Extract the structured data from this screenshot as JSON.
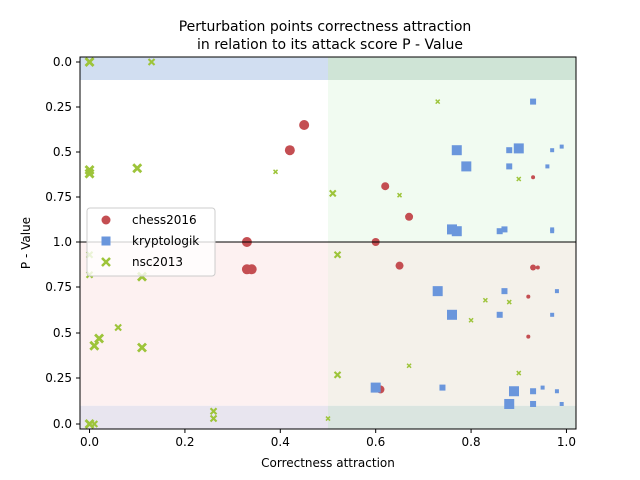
{
  "chart_data": {
    "type": "scatter",
    "title": [
      "Perturbation points correctness attraction",
      "in relation to its attack score P - Value"
    ],
    "xlabel": "Correctness attraction",
    "ylabel": "P - Value",
    "xlim": [
      -0.02,
      1.02
    ],
    "x_ticks": [
      0.0,
      0.2,
      0.4,
      0.6,
      0.8,
      1.0
    ],
    "x_tick_labels": [
      "0.0",
      "0.2",
      "0.4",
      "0.6",
      "0.8",
      "1.0"
    ],
    "y_panels": "Upper half and lower half each span P-Value 0 to 1, meeting at the centre line labelled 1.0",
    "y_tick_labels": [
      "0.0",
      "0.25",
      "0.5",
      "0.75",
      "1.0",
      "0.75",
      "0.5",
      "0.25",
      "0.0"
    ],
    "grid": false,
    "legend_position": "center-left",
    "regions": [
      {
        "panel": "top",
        "x": [
          -0.02,
          0.5
        ],
        "p": [
          0.0,
          0.1
        ],
        "color": "#c9d8ef"
      },
      {
        "panel": "top",
        "x": [
          0.5,
          1.02
        ],
        "p": [
          0.0,
          0.1
        ],
        "color": "#c7dfcf"
      },
      {
        "panel": "top",
        "x": [
          0.5,
          1.02
        ],
        "p": [
          0.1,
          1.0
        ],
        "color": "#effaef"
      },
      {
        "panel": "bottom",
        "x": [
          -0.02,
          0.5
        ],
        "p": [
          0.1,
          1.0
        ],
        "color": "#fdeeee"
      },
      {
        "panel": "bottom",
        "x": [
          0.5,
          1.02
        ],
        "p": [
          0.1,
          1.0
        ],
        "color": "#f2efe6"
      },
      {
        "panel": "bottom",
        "x": [
          -0.02,
          0.5
        ],
        "p": [
          0.0,
          0.1
        ],
        "color": "#e4e0ec"
      },
      {
        "panel": "bottom",
        "x": [
          0.5,
          1.02
        ],
        "p": [
          0.0,
          0.1
        ],
        "color": "#d3e0da"
      }
    ],
    "series": [
      {
        "name": "chess2016",
        "marker": "circle",
        "color": "#c44e52",
        "points": [
          {
            "x": 0.45,
            "p": 0.35,
            "panel": "top",
            "size": 5
          },
          {
            "x": 0.42,
            "p": 0.49,
            "panel": "top",
            "size": 5
          },
          {
            "x": 0.62,
            "p": 0.69,
            "panel": "top",
            "size": 4
          },
          {
            "x": 0.67,
            "p": 0.86,
            "panel": "top",
            "size": 4
          },
          {
            "x": 0.93,
            "p": 0.64,
            "panel": "top",
            "size": 2
          },
          {
            "x": 0.33,
            "p": 1.0,
            "panel": "bottom",
            "size": 5
          },
          {
            "x": 0.6,
            "p": 1.0,
            "panel": "bottom",
            "size": 4
          },
          {
            "x": 0.33,
            "p": 0.85,
            "panel": "bottom",
            "size": 5
          },
          {
            "x": 0.34,
            "p": 0.85,
            "panel": "bottom",
            "size": 5
          },
          {
            "x": 0.65,
            "p": 0.87,
            "panel": "bottom",
            "size": 4
          },
          {
            "x": 0.93,
            "p": 0.86,
            "panel": "bottom",
            "size": 3
          },
          {
            "x": 0.94,
            "p": 0.86,
            "panel": "bottom",
            "size": 2
          },
          {
            "x": 0.92,
            "p": 0.7,
            "panel": "bottom",
            "size": 2
          },
          {
            "x": 0.92,
            "p": 0.48,
            "panel": "bottom",
            "size": 2
          },
          {
            "x": 0.61,
            "p": 0.19,
            "panel": "bottom",
            "size": 4
          }
        ]
      },
      {
        "name": "kryptologik",
        "marker": "square",
        "color": "#6a96dc",
        "points": [
          {
            "x": 0.93,
            "p": 0.22,
            "panel": "top",
            "size": 3
          },
          {
            "x": 0.77,
            "p": 0.49,
            "panel": "top",
            "size": 5
          },
          {
            "x": 0.79,
            "p": 0.58,
            "panel": "top",
            "size": 5
          },
          {
            "x": 0.88,
            "p": 0.49,
            "panel": "top",
            "size": 3
          },
          {
            "x": 0.9,
            "p": 0.48,
            "panel": "top",
            "size": 5
          },
          {
            "x": 0.88,
            "p": 0.58,
            "panel": "top",
            "size": 3
          },
          {
            "x": 0.97,
            "p": 0.49,
            "panel": "top",
            "size": 2
          },
          {
            "x": 0.99,
            "p": 0.47,
            "panel": "top",
            "size": 2
          },
          {
            "x": 0.96,
            "p": 0.58,
            "panel": "top",
            "size": 2
          },
          {
            "x": 0.76,
            "p": 0.93,
            "panel": "top",
            "size": 5
          },
          {
            "x": 0.77,
            "p": 0.94,
            "panel": "top",
            "size": 5
          },
          {
            "x": 0.86,
            "p": 0.94,
            "panel": "top",
            "size": 3
          },
          {
            "x": 0.87,
            "p": 0.93,
            "panel": "top",
            "size": 3
          },
          {
            "x": 0.97,
            "p": 0.93,
            "panel": "top",
            "size": 2
          },
          {
            "x": 0.97,
            "p": 0.94,
            "panel": "top",
            "size": 2
          },
          {
            "x": 0.73,
            "p": 0.73,
            "panel": "bottom",
            "size": 5
          },
          {
            "x": 0.76,
            "p": 0.6,
            "panel": "bottom",
            "size": 5
          },
          {
            "x": 0.87,
            "p": 0.73,
            "panel": "bottom",
            "size": 3
          },
          {
            "x": 0.86,
            "p": 0.6,
            "panel": "bottom",
            "size": 3
          },
          {
            "x": 0.98,
            "p": 0.73,
            "panel": "bottom",
            "size": 2
          },
          {
            "x": 0.97,
            "p": 0.6,
            "panel": "bottom",
            "size": 2
          },
          {
            "x": 0.6,
            "p": 0.2,
            "panel": "bottom",
            "size": 5
          },
          {
            "x": 0.74,
            "p": 0.2,
            "panel": "bottom",
            "size": 3
          },
          {
            "x": 0.89,
            "p": 0.18,
            "panel": "bottom",
            "size": 5
          },
          {
            "x": 0.88,
            "p": 0.11,
            "panel": "bottom",
            "size": 5
          },
          {
            "x": 0.93,
            "p": 0.18,
            "panel": "bottom",
            "size": 3
          },
          {
            "x": 0.93,
            "p": 0.11,
            "panel": "bottom",
            "size": 3
          },
          {
            "x": 0.95,
            "p": 0.2,
            "panel": "bottom",
            "size": 2
          },
          {
            "x": 0.98,
            "p": 0.18,
            "panel": "bottom",
            "size": 2
          },
          {
            "x": 0.99,
            "p": 0.11,
            "panel": "bottom",
            "size": 2
          }
        ]
      },
      {
        "name": "nsc2013",
        "marker": "x",
        "color": "#9dc43a",
        "points": [
          {
            "x": 0.0,
            "p": 0.0,
            "panel": "top",
            "size": 4
          },
          {
            "x": 0.13,
            "p": 0.0,
            "panel": "top",
            "size": 3
          },
          {
            "x": 0.73,
            "p": 0.22,
            "panel": "top",
            "size": 2
          },
          {
            "x": 0.0,
            "p": 0.6,
            "panel": "top",
            "size": 4
          },
          {
            "x": 0.0,
            "p": 0.62,
            "panel": "top",
            "size": 4
          },
          {
            "x": 0.1,
            "p": 0.59,
            "panel": "top",
            "size": 4
          },
          {
            "x": 0.39,
            "p": 0.61,
            "panel": "top",
            "size": 2
          },
          {
            "x": 0.51,
            "p": 0.73,
            "panel": "top",
            "size": 3
          },
          {
            "x": 0.65,
            "p": 0.74,
            "panel": "top",
            "size": 2
          },
          {
            "x": 0.9,
            "p": 0.65,
            "panel": "top",
            "size": 2
          },
          {
            "x": 0.0,
            "p": 0.93,
            "panel": "bottom",
            "size": 3
          },
          {
            "x": 0.0,
            "p": 0.82,
            "panel": "bottom",
            "size": 3
          },
          {
            "x": 0.11,
            "p": 0.81,
            "panel": "bottom",
            "size": 4
          },
          {
            "x": 0.52,
            "p": 0.93,
            "panel": "bottom",
            "size": 3
          },
          {
            "x": 0.83,
            "p": 0.68,
            "panel": "bottom",
            "size": 2
          },
          {
            "x": 0.88,
            "p": 0.67,
            "panel": "bottom",
            "size": 2
          },
          {
            "x": 0.8,
            "p": 0.57,
            "panel": "bottom",
            "size": 2
          },
          {
            "x": 0.06,
            "p": 0.53,
            "panel": "bottom",
            "size": 3
          },
          {
            "x": 0.02,
            "p": 0.47,
            "panel": "bottom",
            "size": 4
          },
          {
            "x": 0.01,
            "p": 0.43,
            "panel": "bottom",
            "size": 4
          },
          {
            "x": 0.11,
            "p": 0.42,
            "panel": "bottom",
            "size": 4
          },
          {
            "x": 0.67,
            "p": 0.32,
            "panel": "bottom",
            "size": 2
          },
          {
            "x": 0.52,
            "p": 0.27,
            "panel": "bottom",
            "size": 3
          },
          {
            "x": 0.9,
            "p": 0.28,
            "panel": "bottom",
            "size": 2
          },
          {
            "x": 0.26,
            "p": 0.07,
            "panel": "bottom",
            "size": 3
          },
          {
            "x": 0.26,
            "p": 0.03,
            "panel": "bottom",
            "size": 3
          },
          {
            "x": 0.0,
            "p": 0.0,
            "panel": "bottom",
            "size": 4
          },
          {
            "x": 0.01,
            "p": 0.0,
            "panel": "bottom",
            "size": 3
          },
          {
            "x": 0.5,
            "p": 0.03,
            "panel": "bottom",
            "size": 2
          }
        ]
      }
    ]
  }
}
